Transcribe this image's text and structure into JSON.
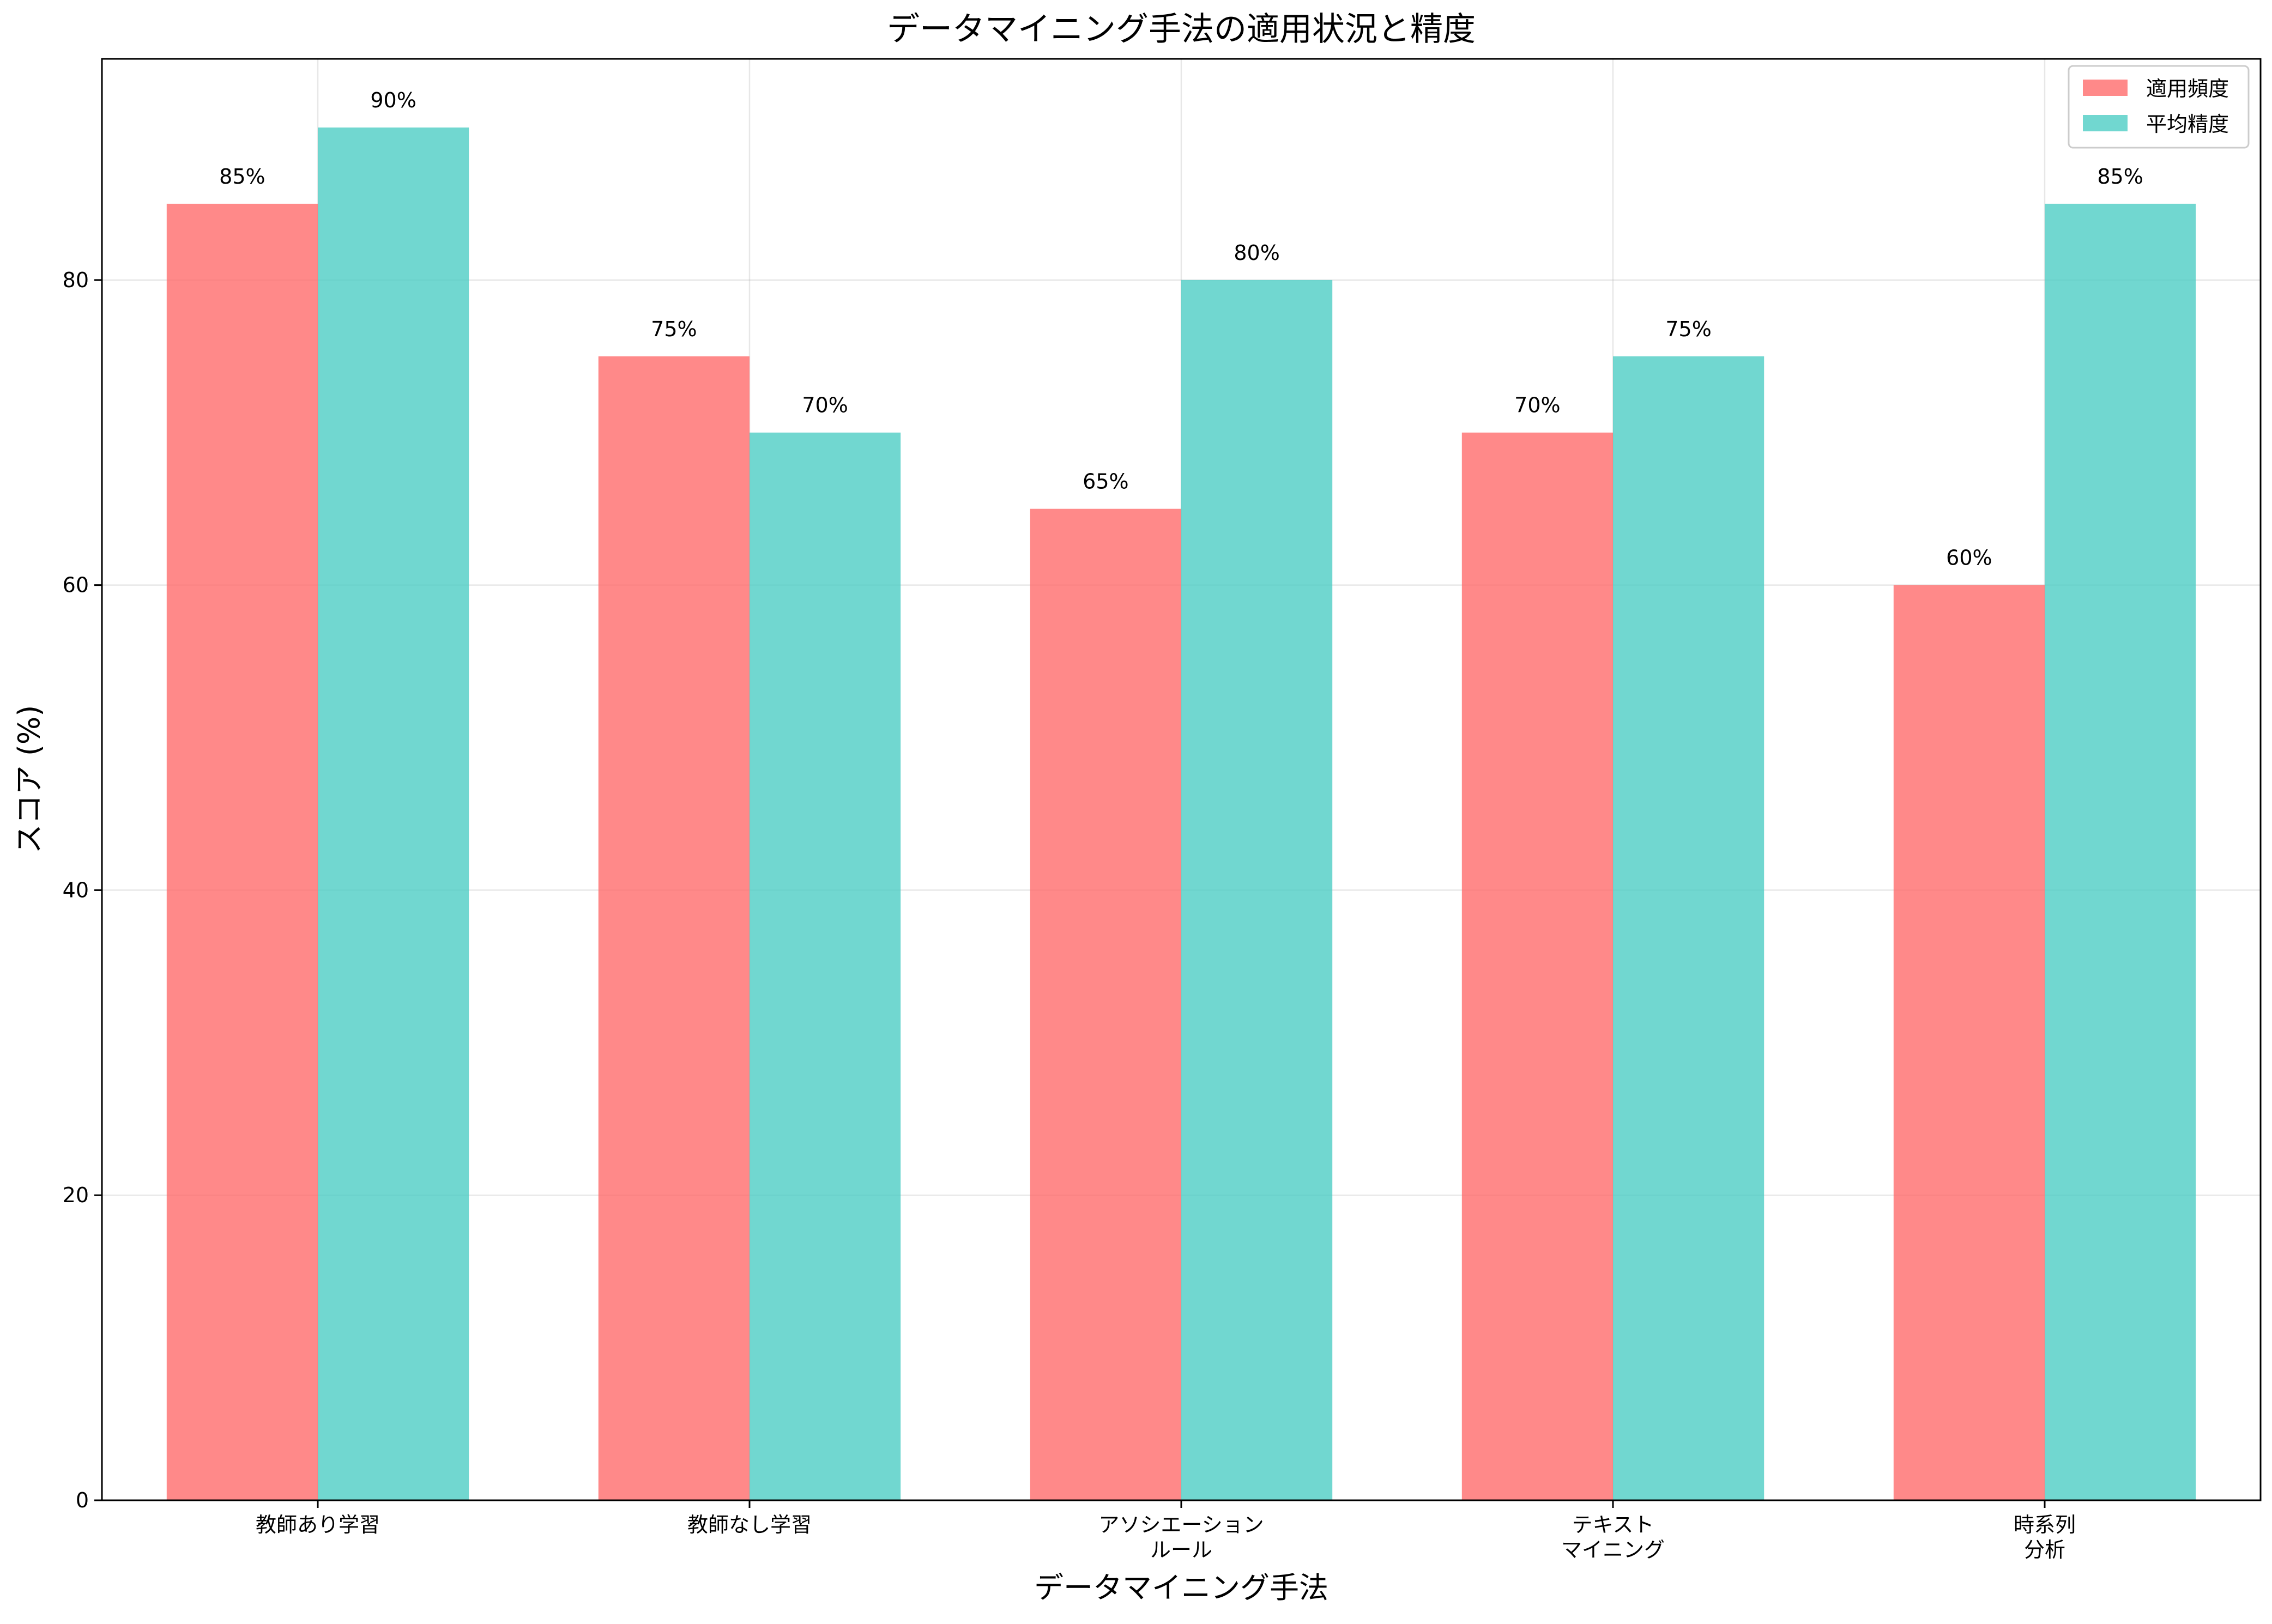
{
  "chart_data": {
    "type": "bar",
    "title": "データマイニング手法の適用状況と精度",
    "xlabel": "データマイニング手法",
    "ylabel": "スコア (%)",
    "categories": [
      [
        "教師あり学習"
      ],
      [
        "教師なし学習"
      ],
      [
        "アソシエーション",
        "ルール"
      ],
      [
        "テキスト",
        "マイニング"
      ],
      [
        "時系列",
        "分析"
      ]
    ],
    "series": [
      {
        "name": "適用頻度",
        "color": "#ff6b6b",
        "values": [
          85,
          75,
          65,
          70,
          60
        ],
        "labels": [
          "85%",
          "75%",
          "65%",
          "70%",
          "60%"
        ]
      },
      {
        "name": "平均精度",
        "color": "#4ecdc4",
        "values": [
          90,
          70,
          80,
          75,
          85
        ],
        "labels": [
          "90%",
          "70%",
          "80%",
          "75%",
          "85%"
        ]
      }
    ],
    "ylim": [
      0,
      94.5
    ],
    "yticks": [
      0,
      20,
      40,
      60,
      80
    ],
    "grid": true,
    "legend_position": "top-right"
  }
}
